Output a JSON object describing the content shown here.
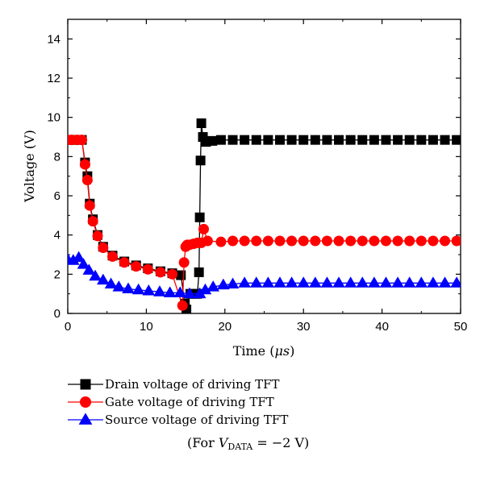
{
  "chart_data": {
    "type": "line",
    "title": "",
    "xlabel_prefix": "Time (",
    "xlabel_unit": "μs",
    "xlabel_suffix": ")",
    "ylabel": "Voltage (V)",
    "xlim": [
      0,
      50
    ],
    "ylim": [
      0,
      15
    ],
    "x_ticks": [
      0,
      10,
      20,
      30,
      40,
      50
    ],
    "y_ticks": [
      0,
      2,
      4,
      6,
      8,
      10,
      12,
      14
    ],
    "grid": false,
    "legend_position": "below-plot",
    "series": [
      {
        "name": "Drain voltage of driving TFT",
        "color": "#000000",
        "marker": "square",
        "x": [
          0,
          0.5,
          1.2,
          1.8,
          2.2,
          2.5,
          2.8,
          3.2,
          3.8,
          4.5,
          5.7,
          7.2,
          8.7,
          10.2,
          11.8,
          13.3,
          14.4,
          14.9,
          15.1,
          15.6,
          16.2,
          16.5,
          16.7,
          16.8,
          16.9,
          17.0,
          17.2,
          17.6,
          18.4,
          19.5,
          21,
          22.5,
          24,
          25.5,
          27,
          28.5,
          30,
          31.5,
          33,
          34.5,
          36,
          37.5,
          39,
          40.5,
          42,
          43.5,
          45,
          46.5,
          48,
          49.5
        ],
        "y": [
          8.85,
          8.85,
          8.85,
          8.85,
          7.7,
          7.0,
          5.6,
          4.8,
          4.0,
          3.4,
          2.95,
          2.65,
          2.45,
          2.3,
          2.15,
          2.05,
          1.95,
          0.5,
          0.2,
          1.0,
          1.0,
          1.0,
          2.1,
          4.9,
          7.8,
          9.7,
          9.0,
          8.75,
          8.8,
          8.85,
          8.85,
          8.85,
          8.85,
          8.85,
          8.85,
          8.85,
          8.85,
          8.85,
          8.85,
          8.85,
          8.85,
          8.85,
          8.85,
          8.85,
          8.85,
          8.85,
          8.85,
          8.85,
          8.85,
          8.85
        ]
      },
      {
        "name": "Gate voltage of driving TFT",
        "color": "#ff0000",
        "marker": "circle",
        "x": [
          0,
          0.5,
          1.2,
          1.8,
          2.2,
          2.5,
          2.8,
          3.2,
          3.8,
          4.5,
          5.7,
          7.2,
          8.7,
          10.2,
          11.8,
          13.3,
          14.6,
          14.8,
          15.0,
          15.2,
          15.5,
          16.0,
          16.5,
          17.0,
          17.3,
          17.8,
          19.5,
          21,
          22.5,
          24,
          25.5,
          27,
          28.5,
          30,
          31.5,
          33,
          34.5,
          36,
          37.5,
          39,
          40.5,
          42,
          43.5,
          45,
          46.5,
          48,
          49.5
        ],
        "y": [
          8.85,
          8.85,
          8.85,
          8.85,
          7.6,
          6.8,
          5.5,
          4.7,
          3.95,
          3.35,
          2.9,
          2.6,
          2.4,
          2.25,
          2.1,
          2.0,
          0.4,
          2.6,
          3.4,
          3.5,
          3.5,
          3.55,
          3.6,
          3.6,
          4.3,
          3.7,
          3.65,
          3.7,
          3.7,
          3.7,
          3.7,
          3.7,
          3.7,
          3.7,
          3.7,
          3.7,
          3.7,
          3.7,
          3.7,
          3.7,
          3.7,
          3.7,
          3.7,
          3.7,
          3.7,
          3.7,
          3.7
        ]
      },
      {
        "name": "Source voltage of driving TFT",
        "color": "#0000ff",
        "marker": "triangle",
        "x": [
          0,
          0.7,
          1.4,
          2.0,
          2.7,
          3.5,
          4.5,
          5.5,
          6.5,
          7.7,
          9.0,
          10.3,
          11.7,
          13.0,
          14.3,
          15.5,
          16.8,
          17.5,
          18.5,
          19.8,
          21,
          22.5,
          24,
          25.5,
          27,
          28.5,
          30,
          31.5,
          33,
          34.5,
          36,
          37.5,
          39,
          40.5,
          42,
          43.5,
          45,
          46.5,
          48,
          49.5
        ],
        "y": [
          2.75,
          2.7,
          2.85,
          2.5,
          2.2,
          1.9,
          1.7,
          1.5,
          1.35,
          1.25,
          1.2,
          1.15,
          1.1,
          1.05,
          1.05,
          1.0,
          1.0,
          1.2,
          1.35,
          1.45,
          1.5,
          1.55,
          1.55,
          1.55,
          1.55,
          1.55,
          1.55,
          1.55,
          1.55,
          1.55,
          1.55,
          1.55,
          1.55,
          1.55,
          1.55,
          1.55,
          1.55,
          1.55,
          1.55,
          1.55
        ]
      }
    ],
    "note": {
      "prefix": "(For ",
      "var": "V",
      "sub": "DATA",
      "suffix": " = −2 V)"
    }
  }
}
